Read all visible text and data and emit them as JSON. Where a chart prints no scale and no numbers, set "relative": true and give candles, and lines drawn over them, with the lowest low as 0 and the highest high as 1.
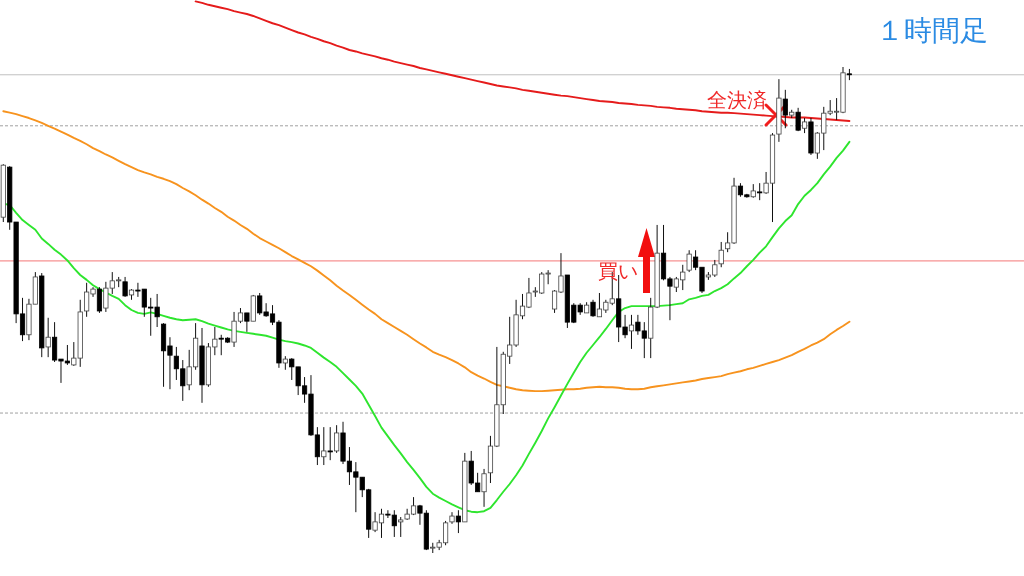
{
  "chart_data": {
    "type": "candlestick",
    "title": "１時間足",
    "relative": true,
    "categories": [
      null,
      null,
      null,
      null,
      null,
      null,
      null,
      null,
      null,
      null,
      null,
      null,
      null,
      null,
      null,
      null,
      null,
      null,
      null,
      null,
      null,
      null,
      null,
      null,
      null,
      null,
      null,
      null,
      null,
      null,
      null,
      null,
      null,
      null,
      null,
      null,
      null,
      null,
      null,
      null,
      null,
      null,
      null,
      null,
      null,
      null,
      null,
      null,
      null,
      null,
      null,
      null,
      null,
      null,
      null,
      null,
      null,
      null,
      null,
      null,
      null,
      null,
      null,
      null,
      null,
      null,
      null,
      null,
      null,
      null,
      null,
      null,
      null,
      null,
      null,
      null,
      null,
      null,
      null,
      null,
      null,
      null,
      null,
      null,
      null,
      null,
      null,
      null,
      null,
      null,
      null,
      null,
      null,
      null,
      null,
      null,
      null,
      null,
      null,
      null,
      null,
      null,
      null,
      null,
      null,
      null,
      null,
      null,
      null,
      null,
      null,
      null,
      null,
      null,
      null,
      null,
      null,
      null,
      null,
      null,
      null,
      null,
      null,
      null,
      null,
      null,
      null,
      null,
      null,
      null,
      null,
      null,
      null
    ],
    "ohlc": [
      [
        0.691,
        0.8,
        0.681,
        0.798
      ],
      [
        0.794,
        0.796,
        0.665,
        0.681
      ],
      [
        0.681,
        0.681,
        0.473,
        0.492
      ],
      [
        0.492,
        0.525,
        0.436,
        0.449
      ],
      [
        0.449,
        0.523,
        0.438,
        0.512
      ],
      [
        0.512,
        0.578,
        0.512,
        0.568
      ],
      [
        0.57,
        0.576,
        0.403,
        0.422
      ],
      [
        0.424,
        0.484,
        0.403,
        0.444
      ],
      [
        0.444,
        0.475,
        0.393,
        0.397
      ],
      [
        0.399,
        0.399,
        0.35,
        0.395
      ],
      [
        0.395,
        0.428,
        0.387,
        0.391
      ],
      [
        0.387,
        0.434,
        0.385,
        0.401
      ],
      [
        0.401,
        0.521,
        0.383,
        0.496
      ],
      [
        0.498,
        0.556,
        0.486,
        0.537
      ],
      [
        0.533,
        0.547,
        0.527,
        0.543
      ],
      [
        0.543,
        0.547,
        0.494,
        0.498
      ],
      [
        0.504,
        0.558,
        0.496,
        0.545
      ],
      [
        0.545,
        0.578,
        0.533,
        0.56
      ],
      [
        0.56,
        0.568,
        0.547,
        0.562
      ],
      [
        0.558,
        0.568,
        0.527,
        0.529
      ],
      [
        0.531,
        0.543,
        0.521,
        0.541
      ],
      [
        0.541,
        0.556,
        0.527,
        0.539
      ],
      [
        0.543,
        0.543,
        0.486,
        0.506
      ],
      [
        0.506,
        0.525,
        0.447,
        0.504
      ],
      [
        0.506,
        0.533,
        0.465,
        0.486
      ],
      [
        0.471,
        0.473,
        0.342,
        0.416
      ],
      [
        0.426,
        0.444,
        0.337,
        0.407
      ],
      [
        0.405,
        0.424,
        0.356,
        0.379
      ],
      [
        0.379,
        0.397,
        0.313,
        0.344
      ],
      [
        0.346,
        0.418,
        0.335,
        0.383
      ],
      [
        0.383,
        0.473,
        0.377,
        0.442
      ],
      [
        0.426,
        0.463,
        0.309,
        0.346
      ],
      [
        0.346,
        0.432,
        0.342,
        0.424
      ],
      [
        0.424,
        0.465,
        0.407,
        0.44
      ],
      [
        0.442,
        0.449,
        0.407,
        0.44
      ],
      [
        0.442,
        0.444,
        0.432,
        0.434
      ],
      [
        0.434,
        0.496,
        0.424,
        0.477
      ],
      [
        0.477,
        0.504,
        0.473,
        0.494
      ],
      [
        0.494,
        0.494,
        0.455,
        0.477
      ],
      [
        0.477,
        0.531,
        0.477,
        0.529
      ],
      [
        0.529,
        0.535,
        0.49,
        0.494
      ],
      [
        0.496,
        0.514,
        0.486,
        0.488
      ],
      [
        0.492,
        0.51,
        0.469,
        0.475
      ],
      [
        0.475,
        0.479,
        0.381,
        0.391
      ],
      [
        0.391,
        0.405,
        0.377,
        0.399
      ],
      [
        0.399,
        0.401,
        0.356,
        0.383
      ],
      [
        0.383,
        0.383,
        0.325,
        0.344
      ],
      [
        0.344,
        0.362,
        0.309,
        0.327
      ],
      [
        0.327,
        0.366,
        0.241,
        0.243
      ],
      [
        0.243,
        0.259,
        0.181,
        0.198
      ],
      [
        0.198,
        0.259,
        0.181,
        0.21
      ],
      [
        0.21,
        0.259,
        0.191,
        0.208
      ],
      [
        0.21,
        0.263,
        0.206,
        0.247
      ],
      [
        0.247,
        0.27,
        0.183,
        0.189
      ],
      [
        0.189,
        0.218,
        0.14,
        0.167
      ],
      [
        0.167,
        0.187,
        0.084,
        0.156
      ],
      [
        0.156,
        0.156,
        0.115,
        0.13
      ],
      [
        0.13,
        0.132,
        0.031,
        0.049
      ],
      [
        0.047,
        0.084,
        0.043,
        0.064
      ],
      [
        0.062,
        0.091,
        0.031,
        0.08
      ],
      [
        0.08,
        0.088,
        0.072,
        0.078
      ],
      [
        0.078,
        0.088,
        0.033,
        0.056
      ],
      [
        0.064,
        0.074,
        0.033,
        0.068
      ],
      [
        0.07,
        0.091,
        0.068,
        0.08
      ],
      [
        0.08,
        0.115,
        0.078,
        0.097
      ],
      [
        0.097,
        0.099,
        0.058,
        0.082
      ],
      [
        0.082,
        0.088,
        0.006,
        0.008
      ],
      [
        0.01,
        0.021,
        0.0,
        0.012
      ],
      [
        0.012,
        0.027,
        0.006,
        0.021
      ],
      [
        0.021,
        0.066,
        0.016,
        0.062
      ],
      [
        0.064,
        0.084,
        0.06,
        0.076
      ],
      [
        0.076,
        0.088,
        0.041,
        0.064
      ],
      [
        0.064,
        0.206,
        0.064,
        0.189
      ],
      [
        0.189,
        0.21,
        0.14,
        0.144
      ],
      [
        0.144,
        0.165,
        0.126,
        0.126
      ],
      [
        0.126,
        0.173,
        0.095,
        0.163
      ],
      [
        0.165,
        0.241,
        0.144,
        0.22
      ],
      [
        0.22,
        0.424,
        0.218,
        0.305
      ],
      [
        0.305,
        0.414,
        0.286,
        0.409
      ],
      [
        0.405,
        0.486,
        0.389,
        0.428
      ],
      [
        0.428,
        0.521,
        0.424,
        0.49
      ],
      [
        0.488,
        0.533,
        0.481,
        0.508
      ],
      [
        0.506,
        0.566,
        0.504,
        0.535
      ],
      [
        0.537,
        0.547,
        0.527,
        0.539
      ],
      [
        0.535,
        0.578,
        0.533,
        0.574
      ],
      [
        0.574,
        0.582,
        0.553,
        0.576
      ],
      [
        0.502,
        0.541,
        0.494,
        0.539
      ],
      [
        0.537,
        0.617,
        0.535,
        0.57
      ],
      [
        0.572,
        0.572,
        0.463,
        0.475
      ],
      [
        0.51,
        0.514,
        0.473,
        0.475
      ],
      [
        0.51,
        0.514,
        0.49,
        0.496
      ],
      [
        0.494,
        0.516,
        0.494,
        0.51
      ],
      [
        0.516,
        0.521,
        0.486,
        0.488
      ],
      [
        0.486,
        0.535,
        0.486,
        0.502
      ],
      [
        0.5,
        0.521,
        0.494,
        0.516
      ],
      [
        0.514,
        0.578,
        0.51,
        0.523
      ],
      [
        0.523,
        0.572,
        0.434,
        0.465
      ],
      [
        0.465,
        0.49,
        0.442,
        0.449
      ],
      [
        0.457,
        0.49,
        0.42,
        0.469
      ],
      [
        0.475,
        0.49,
        0.449,
        0.457
      ],
      [
        0.457,
        0.475,
        0.401,
        0.442
      ],
      [
        0.442,
        0.525,
        0.401,
        0.506
      ],
      [
        0.506,
        0.675,
        0.504,
        0.617
      ],
      [
        0.617,
        0.675,
        0.561,
        0.564
      ],
      [
        0.564,
        0.568,
        0.479,
        0.549
      ],
      [
        0.547,
        0.568,
        0.537,
        0.564
      ],
      [
        0.562,
        0.593,
        0.541,
        0.578
      ],
      [
        0.582,
        0.623,
        0.578,
        0.615
      ],
      [
        0.609,
        0.623,
        0.582,
        0.588
      ],
      [
        0.588,
        0.588,
        0.535,
        0.539
      ],
      [
        0.568,
        0.578,
        0.562,
        0.572
      ],
      [
        0.572,
        0.603,
        0.568,
        0.593
      ],
      [
        0.595,
        0.64,
        0.588,
        0.623
      ],
      [
        0.626,
        0.66,
        0.619,
        0.638
      ],
      [
        0.638,
        0.772,
        0.636,
        0.755
      ],
      [
        0.755,
        0.761,
        0.733,
        0.737
      ],
      [
        0.737,
        0.739,
        0.731,
        0.733
      ],
      [
        0.733,
        0.759,
        0.731,
        0.745
      ],
      [
        0.743,
        0.761,
        0.726,
        0.741
      ],
      [
        0.741,
        0.784,
        0.739,
        0.761
      ],
      [
        0.761,
        0.864,
        0.681,
        0.86
      ],
      [
        0.862,
        0.975,
        0.846,
        0.936
      ],
      [
        0.934,
        0.953,
        0.874,
        0.901
      ],
      [
        0.901,
        0.912,
        0.895,
        0.907
      ],
      [
        0.907,
        0.916,
        0.868,
        0.87
      ],
      [
        0.874,
        0.895,
        0.864,
        0.887
      ],
      [
        0.887,
        0.895,
        0.819,
        0.823
      ],
      [
        0.823,
        0.866,
        0.811,
        0.864
      ],
      [
        0.864,
        0.918,
        0.829,
        0.905
      ],
      [
        0.905,
        0.932,
        0.901,
        0.909
      ],
      [
        0.907,
        0.936,
        0.891,
        0.909
      ],
      [
        0.907,
        1.0,
        0.905,
        0.988
      ],
      [
        0.986,
        0.996,
        0.973,
        0.984
      ]
    ],
    "series": [
      {
        "type": "line",
        "color": "#e51b1b",
        "values": [
          null,
          null,
          null,
          null,
          null,
          null,
          null,
          null,
          null,
          null,
          null,
          null,
          null,
          null,
          null,
          null,
          null,
          null,
          null,
          null,
          null,
          null,
          null,
          null,
          null,
          null,
          null,
          null,
          null,
          null,
          1.135,
          1.132,
          1.128,
          1.125,
          1.122,
          1.119,
          1.115,
          1.112,
          1.109,
          1.105,
          1.1,
          1.095,
          1.09,
          1.086,
          1.081,
          1.076,
          1.071,
          1.067,
          1.062,
          1.058,
          1.053,
          1.049,
          1.044,
          1.04,
          1.035,
          1.032,
          1.028,
          1.025,
          1.022,
          1.018,
          1.015,
          1.011,
          1.008,
          1.005,
          1.002,
          0.998,
          0.995,
          0.992,
          0.989,
          0.986,
          0.983,
          0.98,
          0.977,
          0.974,
          0.971,
          0.968,
          0.965,
          0.962,
          0.96,
          0.958,
          0.956,
          0.953,
          0.951,
          0.949,
          0.947,
          0.945,
          0.943,
          0.941,
          0.94,
          0.938,
          0.936,
          0.934,
          0.932,
          0.93,
          0.929,
          0.928,
          0.926,
          0.925,
          0.924,
          0.922,
          0.921,
          0.92,
          0.918,
          0.917,
          0.916,
          0.914,
          0.913,
          0.912,
          0.911,
          0.909,
          0.908,
          0.907,
          0.906,
          0.906,
          0.905,
          0.904,
          0.903,
          0.902,
          0.901,
          0.9,
          0.899,
          0.898,
          0.897,
          0.896,
          0.896,
          0.896,
          0.895,
          0.894,
          0.893,
          0.892,
          0.891,
          0.89,
          0.889
        ]
      },
      {
        "type": "line",
        "color": "#f7931e",
        "values": [
          0.909,
          0.906,
          0.903,
          0.899,
          0.895,
          0.89,
          0.885,
          0.879,
          0.873,
          0.867,
          0.861,
          0.854,
          0.848,
          0.841,
          0.833,
          0.827,
          0.82,
          0.814,
          0.807,
          0.8,
          0.794,
          0.788,
          0.783,
          0.779,
          0.774,
          0.77,
          0.765,
          0.759,
          0.751,
          0.744,
          0.736,
          0.727,
          0.719,
          0.71,
          0.702,
          0.692,
          0.684,
          0.675,
          0.667,
          0.657,
          0.648,
          0.641,
          0.634,
          0.627,
          0.619,
          0.611,
          0.604,
          0.597,
          0.59,
          0.581,
          0.571,
          0.561,
          0.55,
          0.54,
          0.531,
          0.521,
          0.511,
          0.501,
          0.492,
          0.481,
          0.473,
          0.465,
          0.457,
          0.449,
          0.44,
          0.431,
          0.423,
          0.414,
          0.408,
          0.403,
          0.397,
          0.39,
          0.382,
          0.372,
          0.365,
          0.359,
          0.352,
          0.346,
          0.343,
          0.34,
          0.337,
          0.335,
          0.334,
          0.333,
          0.333,
          0.334,
          0.335,
          0.336,
          0.337,
          0.337,
          0.338,
          0.34,
          0.341,
          0.342,
          0.341,
          0.341,
          0.34,
          0.338,
          0.337,
          0.337,
          0.338,
          0.341,
          0.343,
          0.345,
          0.347,
          0.349,
          0.351,
          0.353,
          0.355,
          0.358,
          0.36,
          0.362,
          0.364,
          0.368,
          0.371,
          0.374,
          0.378,
          0.381,
          0.385,
          0.389,
          0.393,
          0.397,
          0.402,
          0.407,
          0.414,
          0.42,
          0.427,
          0.433,
          0.44,
          0.45,
          0.459,
          0.467,
          0.476
        ]
      },
      {
        "type": "line",
        "color": "#2ee52e",
        "values": [
          0.719,
          0.716,
          0.7,
          0.685,
          0.675,
          0.665,
          0.647,
          0.636,
          0.624,
          0.614,
          0.602,
          0.586,
          0.572,
          0.562,
          0.551,
          0.543,
          0.536,
          0.529,
          0.523,
          0.51,
          0.5,
          0.494,
          0.492,
          0.495,
          0.492,
          0.488,
          0.484,
          0.481,
          0.479,
          0.48,
          0.481,
          0.477,
          0.472,
          0.468,
          0.464,
          0.46,
          0.457,
          0.455,
          0.453,
          0.451,
          0.449,
          0.447,
          0.443,
          0.439,
          0.436,
          0.434,
          0.431,
          0.427,
          0.422,
          0.412,
          0.402,
          0.393,
          0.383,
          0.37,
          0.357,
          0.344,
          0.328,
          0.305,
          0.282,
          0.258,
          0.24,
          0.222,
          0.205,
          0.187,
          0.171,
          0.154,
          0.136,
          0.122,
          0.114,
          0.107,
          0.1,
          0.094,
          0.088,
          0.085,
          0.084,
          0.086,
          0.093,
          0.109,
          0.126,
          0.142,
          0.16,
          0.18,
          0.204,
          0.227,
          0.251,
          0.277,
          0.3,
          0.324,
          0.348,
          0.371,
          0.393,
          0.412,
          0.428,
          0.444,
          0.461,
          0.479,
          0.496,
          0.504,
          0.508,
          0.508,
          0.508,
          0.508,
          0.508,
          0.509,
          0.51,
          0.512,
          0.514,
          0.522,
          0.525,
          0.529,
          0.531,
          0.539,
          0.545,
          0.553,
          0.565,
          0.576,
          0.59,
          0.603,
          0.618,
          0.631,
          0.65,
          0.668,
          0.683,
          0.695,
          0.718,
          0.735,
          0.747,
          0.761,
          0.779,
          0.795,
          0.813,
          0.828,
          0.846
        ]
      }
    ],
    "ref_lines": [
      {
        "axis": "y",
        "value": 0.984,
        "color": "#c0c0c0",
        "line_style": "solid"
      },
      {
        "axis": "y",
        "value": 0.879,
        "color": "#a0a0a0",
        "line_style": "dashed"
      },
      {
        "axis": "y",
        "value": 0.601,
        "color": "#f47676",
        "line_style": "solid"
      },
      {
        "axis": "y",
        "value": 0.288,
        "color": "#a0a0a0",
        "line_style": "dashed"
      }
    ],
    "annotations": [
      "全決済",
      "買い"
    ]
  }
}
